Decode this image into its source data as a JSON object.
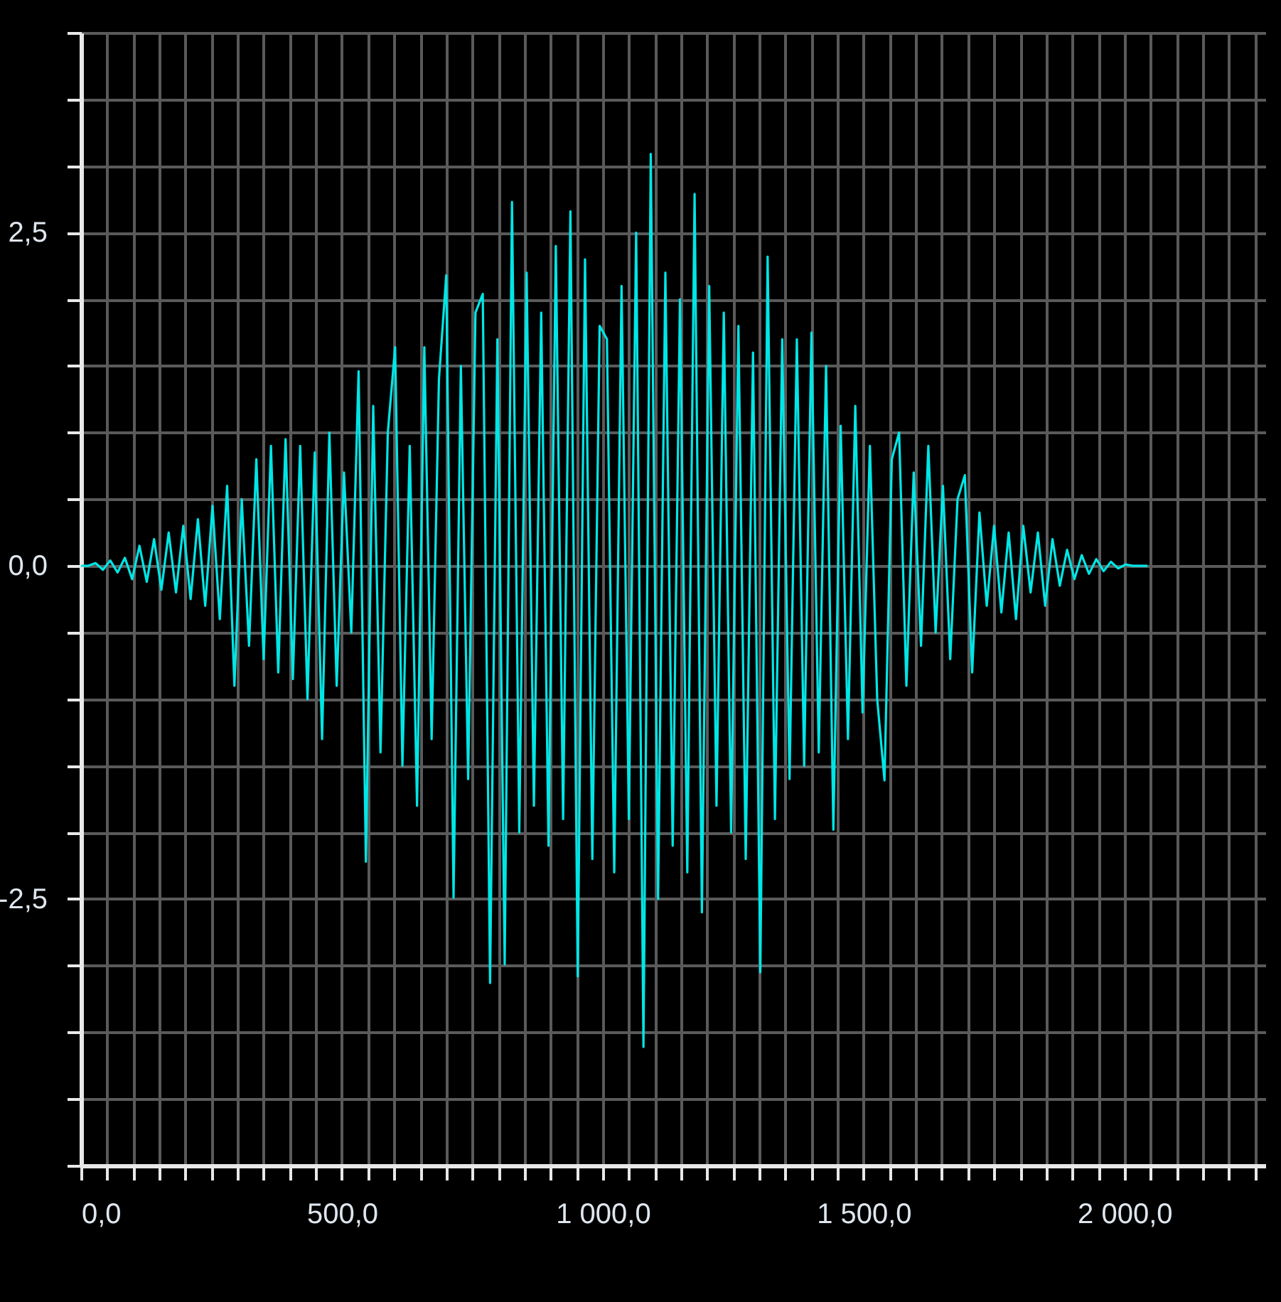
{
  "chart_data": {
    "type": "line",
    "x": [
      0,
      14,
      28,
      42,
      56,
      70,
      84,
      98,
      112,
      126,
      140,
      154,
      168,
      182,
      196,
      210,
      224,
      238,
      252,
      266,
      280,
      294,
      308,
      322,
      336,
      350,
      364,
      378,
      392,
      406,
      420,
      434,
      448,
      462,
      476,
      490,
      504,
      518,
      532,
      546,
      560,
      574,
      588,
      602,
      616,
      630,
      644,
      658,
      672,
      686,
      700,
      714,
      728,
      742,
      756,
      770,
      784,
      798,
      812,
      826,
      840,
      854,
      868,
      882,
      896,
      910,
      924,
      938,
      952,
      966,
      980,
      994,
      1008,
      1022,
      1036,
      1050,
      1064,
      1078,
      1092,
      1106,
      1120,
      1134,
      1148,
      1162,
      1176,
      1190,
      1204,
      1218,
      1232,
      1246,
      1260,
      1274,
      1288,
      1302,
      1316,
      1330,
      1344,
      1358,
      1372,
      1386,
      1400,
      1414,
      1428,
      1442,
      1456,
      1470,
      1484,
      1498,
      1512,
      1526,
      1540,
      1554,
      1568,
      1582,
      1596,
      1610,
      1624,
      1638,
      1652,
      1666,
      1680,
      1694,
      1708,
      1722,
      1736,
      1750,
      1764,
      1778,
      1792,
      1806,
      1820,
      1834,
      1848,
      1862,
      1876,
      1890,
      1904,
      1918,
      1932,
      1946,
      1960,
      1974,
      1988,
      2002,
      2016,
      2030,
      2044
    ],
    "series": [
      {
        "color": "#00e6e6",
        "values": [
          0,
          0,
          0.02,
          -0.03,
          0.04,
          -0.05,
          0.06,
          -0.1,
          0.15,
          -0.12,
          0.2,
          -0.18,
          0.25,
          -0.2,
          0.3,
          -0.25,
          0.35,
          -0.3,
          0.45,
          -0.4,
          0.6,
          -0.9,
          0.5,
          -0.6,
          0.8,
          -0.7,
          0.9,
          -0.8,
          0.95,
          -0.85,
          0.9,
          -1.0,
          0.85,
          -1.3,
          1.0,
          -0.9,
          0.7,
          -0.5,
          1.46,
          -2.22,
          1.2,
          -1.4,
          1.0,
          1.64,
          -1.5,
          0.9,
          -1.8,
          1.64,
          -1.3,
          1.4,
          2.18,
          -2.49,
          1.5,
          -1.6,
          1.9,
          2.04,
          -3.13,
          1.7,
          -2.99,
          2.73,
          -2.0,
          2.2,
          -1.8,
          1.9,
          -2.1,
          2.4,
          -1.9,
          2.66,
          -3.08,
          2.3,
          -2.2,
          1.8,
          1.7,
          -2.3,
          2.1,
          -1.9,
          2.5,
          -3.61,
          3.09,
          -2.5,
          2.2,
          -2.1,
          2.0,
          -2.3,
          2.79,
          -2.6,
          2.1,
          -1.8,
          1.9,
          -2.0,
          1.8,
          -2.2,
          1.6,
          -3.05,
          2.32,
          -1.9,
          1.7,
          -1.6,
          1.7,
          -1.5,
          1.75,
          -1.4,
          1.5,
          -1.98,
          1.05,
          -1.3,
          1.2,
          -1.1,
          0.9,
          -1.0,
          -1.61,
          0.8,
          1.0,
          -0.9,
          0.7,
          -0.6,
          0.9,
          -0.5,
          0.6,
          -0.7,
          0.5,
          0.68,
          -0.8,
          0.4,
          -0.3,
          0.3,
          -0.35,
          0.25,
          -0.4,
          0.3,
          -0.2,
          0.25,
          -0.3,
          0.2,
          -0.15,
          0.12,
          -0.1,
          0.08,
          -0.06,
          0.05,
          -0.04,
          0.03,
          -0.02,
          0.01,
          0,
          0,
          0
        ]
      }
    ],
    "xlim": [
      0,
      2270
    ],
    "xticks": [
      {
        "value": 0,
        "label": "0,0"
      },
      {
        "value": 50,
        "label": null
      },
      {
        "value": 100,
        "label": null
      },
      {
        "value": 150,
        "label": null
      },
      {
        "value": 200,
        "label": null
      },
      {
        "value": 250,
        "label": null
      },
      {
        "value": 300,
        "label": null
      },
      {
        "value": 350,
        "label": null
      },
      {
        "value": 400,
        "label": null
      },
      {
        "value": 450,
        "label": null
      },
      {
        "value": 500,
        "label": "500,0"
      },
      {
        "value": 550,
        "label": null
      },
      {
        "value": 600,
        "label": null
      },
      {
        "value": 650,
        "label": null
      },
      {
        "value": 700,
        "label": null
      },
      {
        "value": 750,
        "label": null
      },
      {
        "value": 800,
        "label": null
      },
      {
        "value": 850,
        "label": null
      },
      {
        "value": 900,
        "label": null
      },
      {
        "value": 950,
        "label": null
      },
      {
        "value": 1000,
        "label": "1 000,0"
      },
      {
        "value": 1050,
        "label": null
      },
      {
        "value": 1100,
        "label": null
      },
      {
        "value": 1150,
        "label": null
      },
      {
        "value": 1200,
        "label": null
      },
      {
        "value": 1250,
        "label": null
      },
      {
        "value": 1300,
        "label": null
      },
      {
        "value": 1350,
        "label": null
      },
      {
        "value": 1400,
        "label": null
      },
      {
        "value": 1450,
        "label": null
      },
      {
        "value": 1500,
        "label": "1 500,0"
      },
      {
        "value": 1550,
        "label": null
      },
      {
        "value": 1600,
        "label": null
      },
      {
        "value": 1650,
        "label": null
      },
      {
        "value": 1700,
        "label": null
      },
      {
        "value": 1750,
        "label": null
      },
      {
        "value": 1800,
        "label": null
      },
      {
        "value": 1850,
        "label": null
      },
      {
        "value": 1900,
        "label": null
      },
      {
        "value": 1950,
        "label": null
      },
      {
        "value": 2000,
        "label": "2 000,0"
      },
      {
        "value": 2050,
        "label": null
      },
      {
        "value": 2100,
        "label": null
      },
      {
        "value": 2150,
        "label": null
      },
      {
        "value": 2200,
        "label": null
      },
      {
        "value": 2250,
        "label": null
      }
    ],
    "ylim": [
      -4.5,
      4.0
    ],
    "yticks": [
      {
        "value": -4.5,
        "label": null
      },
      {
        "value": -4.0,
        "label": null
      },
      {
        "value": -3.5,
        "label": null
      },
      {
        "value": -3.0,
        "label": null
      },
      {
        "value": -2.5,
        "label": "-2,5"
      },
      {
        "value": -2.0,
        "label": null
      },
      {
        "value": -1.5,
        "label": null
      },
      {
        "value": -1.0,
        "label": null
      },
      {
        "value": -0.5,
        "label": null
      },
      {
        "value": 0,
        "label": "0,0"
      },
      {
        "value": 0.5,
        "label": null
      },
      {
        "value": 1.0,
        "label": null
      },
      {
        "value": 1.5,
        "label": null
      },
      {
        "value": 2.0,
        "label": null
      },
      {
        "value": 2.5,
        "label": "2,5"
      },
      {
        "value": 3.0,
        "label": null
      },
      {
        "value": 3.5,
        "label": null
      },
      {
        "value": 4.0,
        "label": null
      }
    ],
    "grid": true,
    "marker": "none",
    "line_style": "solid"
  }
}
